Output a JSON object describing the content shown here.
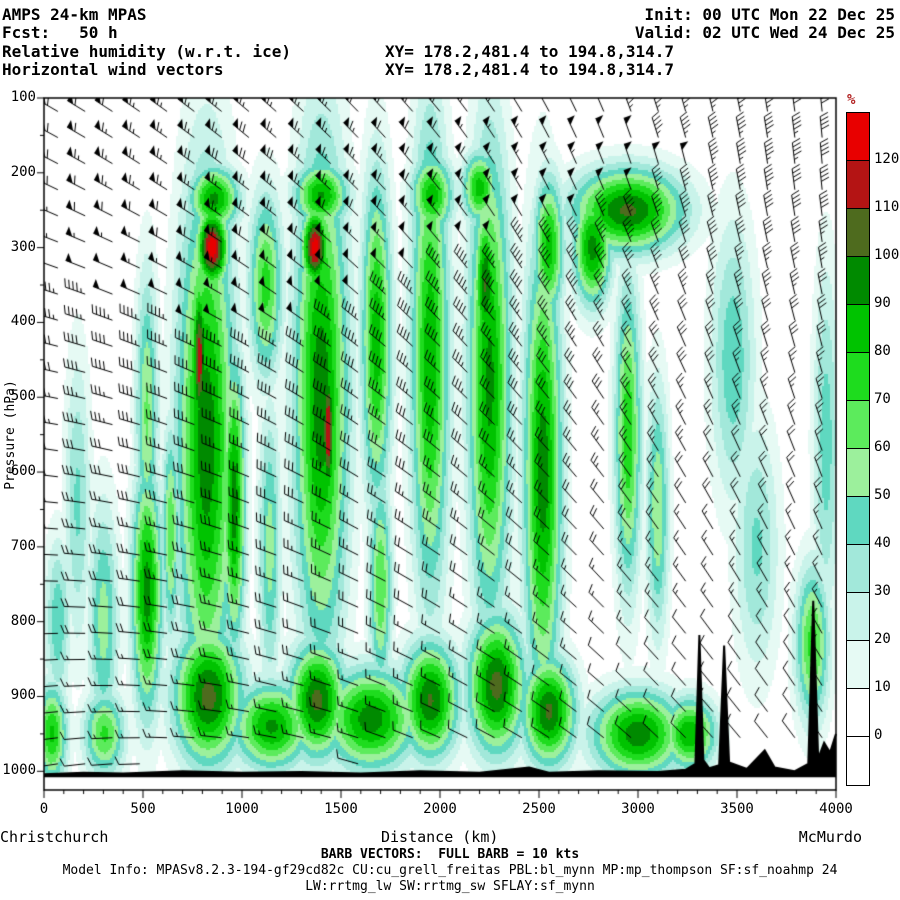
{
  "header": {
    "model_line": "AMPS 24-km MPAS",
    "fcst_line": "Fcst:   50 h",
    "field_line": "Relative humidity (w.r.t. ice)",
    "vector_line": "Horizontal wind vectors",
    "init_line": "Init: 00 UTC Mon 22 Dec 25",
    "valid_line": "Valid: 02 UTC Wed 24 Dec 25",
    "xy_line_1": "XY= 178.2,481.4 to 194.8,314.7",
    "xy_line_2": "XY= 178.2,481.4 to 194.8,314.7"
  },
  "axes": {
    "x_title": "Distance (km)",
    "x_left_label": "Christchurch",
    "x_right_label": "McMurdo",
    "y_title": "Pressure (hPa)",
    "x_ticks": [
      "0",
      "500",
      "1000",
      "1500",
      "2000",
      "2500",
      "3000",
      "3500",
      "4000"
    ],
    "y_ticks": [
      "100",
      "200",
      "300",
      "400",
      "500",
      "600",
      "700",
      "800",
      "900",
      "1000"
    ]
  },
  "colorbar": {
    "title": "%",
    "title_color": "#b22222",
    "labels": [
      "120",
      "110",
      "100",
      "90",
      "80",
      "70",
      "60",
      "50",
      "40",
      "30",
      "20",
      "10",
      "0"
    ],
    "segments_top_to_bottom": [
      "#e80000",
      "#b41414",
      "#4e6b1e",
      "#008a00",
      "#00c300",
      "#1edc1e",
      "#5ceb5c",
      "#9cf09c",
      "#5fd8c0",
      "#a2e8da",
      "#c9f3ea",
      "#e6faf4",
      "#ffffff",
      "#ffffff"
    ]
  },
  "footer": {
    "barb_line": "BARB VECTORS:  FULL BARB = 10 kts",
    "model_info_1": "Model Info: MPASv8.2.3-194-gf29cd82c CU:cu_grell_freitas PBL:bl_mynn MP:mp_thompson SF:sf_noahmp 24",
    "model_info_2": "LW:rrtmg_lw SW:rrtmg_sw SFLAY:sf_mynn"
  },
  "chart_data": {
    "type": "heatmap",
    "title": "Relative humidity (w.r.t. ice) cross-section with horizontal wind vectors, Christchurch to McMurdo",
    "x_range_km": [
      0,
      4000
    ],
    "pressure_range_hpa": [
      100,
      1025
    ],
    "levels": [
      0,
      10,
      20,
      30,
      40,
      50,
      60,
      70,
      80,
      90,
      100,
      110,
      120
    ],
    "level_colors": [
      "#ffffff",
      "#e6faf4",
      "#c9f3ea",
      "#a2e8da",
      "#5fd8c0",
      "#9cf09c",
      "#5ceb5c",
      "#1edc1e",
      "#00c300",
      "#008a00",
      "#4e6b1e",
      "#b41414",
      "#e80000"
    ],
    "barb_full_kts": 10,
    "rh_blobs": [
      [
        40,
        950,
        80,
        70,
        82
      ],
      [
        70,
        800,
        70,
        120,
        48
      ],
      [
        170,
        640,
        70,
        210,
        42
      ],
      [
        300,
        800,
        80,
        170,
        55
      ],
      [
        305,
        950,
        110,
        60,
        72
      ],
      [
        520,
        760,
        80,
        170,
        95
      ],
      [
        520,
        520,
        60,
        200,
        62
      ],
      [
        640,
        680,
        45,
        150,
        68
      ],
      [
        820,
        560,
        150,
        360,
        97
      ],
      [
        850,
        300,
        85,
        55,
        127
      ],
      [
        785,
        450,
        42,
        125,
        117
      ],
      [
        860,
        235,
        130,
        45,
        93
      ],
      [
        830,
        900,
        180,
        95,
        104
      ],
      [
        960,
        640,
        60,
        200,
        96
      ],
      [
        1120,
        350,
        90,
        130,
        74
      ],
      [
        1140,
        700,
        60,
        200,
        55
      ],
      [
        1400,
        500,
        140,
        350,
        97
      ],
      [
        1370,
        300,
        72,
        55,
        126
      ],
      [
        1435,
        545,
        38,
        115,
        121
      ],
      [
        1400,
        230,
        140,
        45,
        91
      ],
      [
        1380,
        905,
        150,
        80,
        103
      ],
      [
        1680,
        420,
        80,
        230,
        86
      ],
      [
        1700,
        750,
        60,
        150,
        70
      ],
      [
        1950,
        450,
        100,
        330,
        88
      ],
      [
        1960,
        230,
        110,
        55,
        86
      ],
      [
        1950,
        905,
        150,
        80,
        101
      ],
      [
        2250,
        480,
        110,
        330,
        93
      ],
      [
        2230,
        350,
        60,
        110,
        101
      ],
      [
        2285,
        885,
        150,
        95,
        104
      ],
      [
        2200,
        220,
        90,
        50,
        85
      ],
      [
        2520,
        600,
        100,
        320,
        96
      ],
      [
        2550,
        300,
        80,
        100,
        85
      ],
      [
        2550,
        920,
        140,
        75,
        102
      ],
      [
        2950,
        250,
        290,
        58,
        102
      ],
      [
        2770,
        300,
        100,
        80,
        94
      ],
      [
        2950,
        550,
        70,
        220,
        78
      ],
      [
        3100,
        650,
        60,
        180,
        60
      ],
      [
        3000,
        950,
        240,
        60,
        97
      ],
      [
        3260,
        950,
        140,
        50,
        90
      ],
      [
        1650,
        930,
        240,
        70,
        96
      ],
      [
        1150,
        940,
        200,
        60,
        92
      ],
      [
        3480,
        450,
        120,
        200,
        48
      ],
      [
        3600,
        700,
        120,
        180,
        42
      ],
      [
        3880,
        830,
        90,
        110,
        74
      ],
      [
        3950,
        560,
        70,
        250,
        46
      ]
    ],
    "terrain_profile_km_hpa": [
      [
        0,
        1004
      ],
      [
        200,
        1002
      ],
      [
        400,
        1003
      ],
      [
        700,
        1000
      ],
      [
        1000,
        1002
      ],
      [
        1300,
        1001
      ],
      [
        1600,
        1003
      ],
      [
        1900,
        1000
      ],
      [
        2200,
        1002
      ],
      [
        2450,
        995
      ],
      [
        2550,
        1002
      ],
      [
        2800,
        1000
      ],
      [
        3100,
        1001
      ],
      [
        3240,
        998
      ],
      [
        3290,
        990
      ],
      [
        3310,
        818
      ],
      [
        3330,
        985
      ],
      [
        3360,
        996
      ],
      [
        3410,
        992
      ],
      [
        3435,
        832
      ],
      [
        3460,
        988
      ],
      [
        3550,
        997
      ],
      [
        3640,
        972
      ],
      [
        3690,
        995
      ],
      [
        3790,
        1000
      ],
      [
        3860,
        990
      ],
      [
        3885,
        772
      ],
      [
        3910,
        983
      ],
      [
        3940,
        962
      ],
      [
        3970,
        975
      ],
      [
        4000,
        950
      ]
    ],
    "wind_grid": {
      "x_km": [
        0,
        500,
        1000,
        1500,
        2000,
        2500,
        3000,
        3500,
        4000
      ],
      "p_hpa": [
        100,
        200,
        300,
        400,
        500,
        600,
        700,
        800,
        900,
        1000
      ],
      "speed_kts": [
        [
          58,
          62,
          66,
          62,
          56,
          50,
          46,
          44,
          40
        ],
        [
          62,
          66,
          70,
          66,
          60,
          55,
          50,
          46,
          42
        ],
        [
          52,
          56,
          60,
          56,
          50,
          45,
          42,
          40,
          36
        ],
        [
          42,
          46,
          50,
          46,
          40,
          36,
          34,
          30,
          30
        ],
        [
          35,
          38,
          40,
          38,
          34,
          30,
          28,
          26,
          24
        ],
        [
          28,
          30,
          33,
          30,
          27,
          25,
          22,
          20,
          20
        ],
        [
          22,
          25,
          27,
          25,
          22,
          20,
          17,
          15,
          15
        ],
        [
          18,
          20,
          22,
          20,
          17,
          15,
          13,
          12,
          12
        ],
        [
          14,
          15,
          17,
          15,
          13,
          12,
          10,
          10,
          10
        ],
        [
          10,
          12,
          13,
          12,
          10,
          9,
          8,
          8,
          8
        ]
      ],
      "dir_deg_from": [
        [
          300,
          305,
          310,
          315,
          320,
          330,
          340,
          348,
          355
        ],
        [
          296,
          302,
          308,
          314,
          322,
          332,
          342,
          350,
          356
        ],
        [
          290,
          296,
          304,
          312,
          320,
          330,
          338,
          346,
          352
        ],
        [
          285,
          292,
          300,
          308,
          316,
          326,
          334,
          342,
          348
        ],
        [
          280,
          288,
          296,
          304,
          312,
          320,
          330,
          338,
          344
        ],
        [
          276,
          284,
          292,
          300,
          308,
          316,
          326,
          334,
          340
        ],
        [
          272,
          280,
          288,
          296,
          304,
          312,
          322,
          330,
          336
        ],
        [
          268,
          276,
          284,
          292,
          300,
          308,
          318,
          326,
          332
        ],
        [
          264,
          272,
          280,
          288,
          296,
          304,
          314,
          322,
          328
        ],
        [
          260,
          268,
          276,
          284,
          292,
          300,
          310,
          318,
          324
        ]
      ]
    }
  }
}
